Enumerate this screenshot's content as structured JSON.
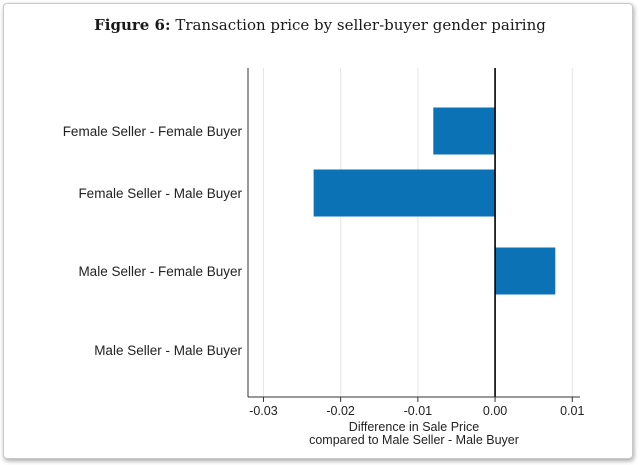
{
  "figure": {
    "number": "Figure 6:",
    "caption": "Transaction price by seller-buyer gender pairing"
  },
  "colors": {
    "bar": "#0b72b5",
    "zero_line": "#000000",
    "grid": "#e4e4e4",
    "axis": "#333333"
  },
  "chart_data": {
    "type": "bar",
    "orientation": "horizontal",
    "categories": [
      "Female Seller - Female Buyer",
      "Female Seller - Male Buyer",
      "Male Seller - Female Buyer",
      "Male Seller - Male Buyer"
    ],
    "values": [
      -0.008,
      -0.0235,
      0.0078,
      0
    ],
    "xlabel": [
      "Difference in Sale Price",
      "compared to Male Seller - Male Buyer"
    ],
    "ylabel": "",
    "xlim": [
      -0.032,
      0.011
    ],
    "xticks": [
      -0.03,
      -0.02,
      -0.01,
      0,
      0.01
    ],
    "xtick_labels": [
      "-0.03",
      "-0.02",
      "-0.01",
      "0.00",
      "0.01"
    ],
    "grid": "vertical",
    "legend": "none"
  }
}
